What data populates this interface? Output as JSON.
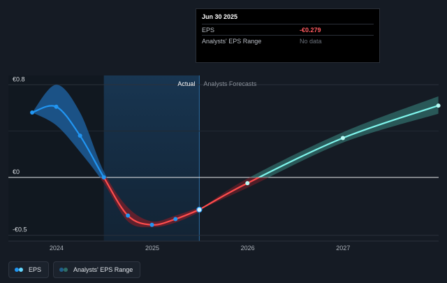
{
  "tooltip": {
    "date": "Jun 30 2025",
    "rows": [
      {
        "label": "EPS",
        "value": "-€0.279"
      },
      {
        "label": "Analysts' EPS Range",
        "value": "No data"
      }
    ]
  },
  "legend": {
    "items": [
      {
        "label": "EPS",
        "colors": [
          "#2196f3",
          "#64d8ff"
        ]
      },
      {
        "label": "Analysts' EPS Range",
        "colors": [
          "#1f5f8b",
          "#2f6d66"
        ]
      }
    ]
  },
  "colors": {
    "background": "#151b24",
    "eps_positive": "#2196f3",
    "eps_negative": "#ff4d4d",
    "forecast_line": "#7ff5ec",
    "range_blue": "#1f65a8",
    "range_red": "#7a1f2a",
    "range_teal": "#3a8a84"
  },
  "chart_data": {
    "type": "line",
    "x_axis": {
      "type": "date",
      "ticks": [
        "2024",
        "2025",
        "2026",
        "2027"
      ],
      "range": [
        "2023-07-01",
        "2028-01-01"
      ]
    },
    "y_axis": {
      "ticks": [
        "€0.8",
        "€0",
        "-€0.5"
      ],
      "tick_values": [
        0.8,
        0,
        -0.5
      ],
      "range": [
        -0.55,
        0.88
      ]
    },
    "regions": [
      {
        "label": "Actual",
        "end": "2025-06-30"
      },
      {
        "label": "Analysts Forecasts",
        "start": "2025-06-30"
      }
    ],
    "highlight_band": {
      "start": "2024-06-30",
      "end": "2025-06-30"
    },
    "series": [
      {
        "name": "EPS",
        "points": [
          {
            "x": "2023-09-30",
            "y": 0.56
          },
          {
            "x": "2023-12-31",
            "y": 0.61
          },
          {
            "x": "2024-03-31",
            "y": 0.36
          },
          {
            "x": "2024-06-30",
            "y": 0.0
          },
          {
            "x": "2024-09-30",
            "y": -0.33
          },
          {
            "x": "2024-12-31",
            "y": -0.41
          },
          {
            "x": "2025-03-31",
            "y": -0.36
          },
          {
            "x": "2025-06-30",
            "y": -0.279
          }
        ]
      },
      {
        "name": "EPS Forecast",
        "points": [
          {
            "x": "2025-06-30",
            "y": -0.279
          },
          {
            "x": "2025-12-31",
            "y": -0.05
          },
          {
            "x": "2026-12-31",
            "y": 0.34
          },
          {
            "x": "2027-12-31",
            "y": 0.62
          }
        ]
      }
    ],
    "range_bands": [
      {
        "points": [
          {
            "x": "2023-09-30",
            "lo": 0.56,
            "hi": 0.56
          },
          {
            "x": "2023-12-31",
            "lo": 0.45,
            "hi": 0.8
          },
          {
            "x": "2024-03-31",
            "lo": 0.22,
            "hi": 0.56
          },
          {
            "x": "2024-06-30",
            "lo": -0.05,
            "hi": 0.05
          },
          {
            "x": "2024-09-30",
            "lo": -0.38,
            "hi": -0.26
          },
          {
            "x": "2024-12-31",
            "lo": -0.43,
            "hi": -0.38
          },
          {
            "x": "2025-03-31",
            "lo": -0.39,
            "hi": -0.33
          },
          {
            "x": "2025-06-30",
            "lo": -0.3,
            "hi": -0.26
          }
        ]
      },
      {
        "points": [
          {
            "x": "2025-06-30",
            "lo": -0.279,
            "hi": -0.279
          },
          {
            "x": "2025-12-31",
            "lo": -0.09,
            "hi": -0.01
          },
          {
            "x": "2026-12-31",
            "lo": 0.3,
            "hi": 0.39
          },
          {
            "x": "2027-12-31",
            "lo": 0.55,
            "hi": 0.7
          }
        ]
      }
    ]
  }
}
